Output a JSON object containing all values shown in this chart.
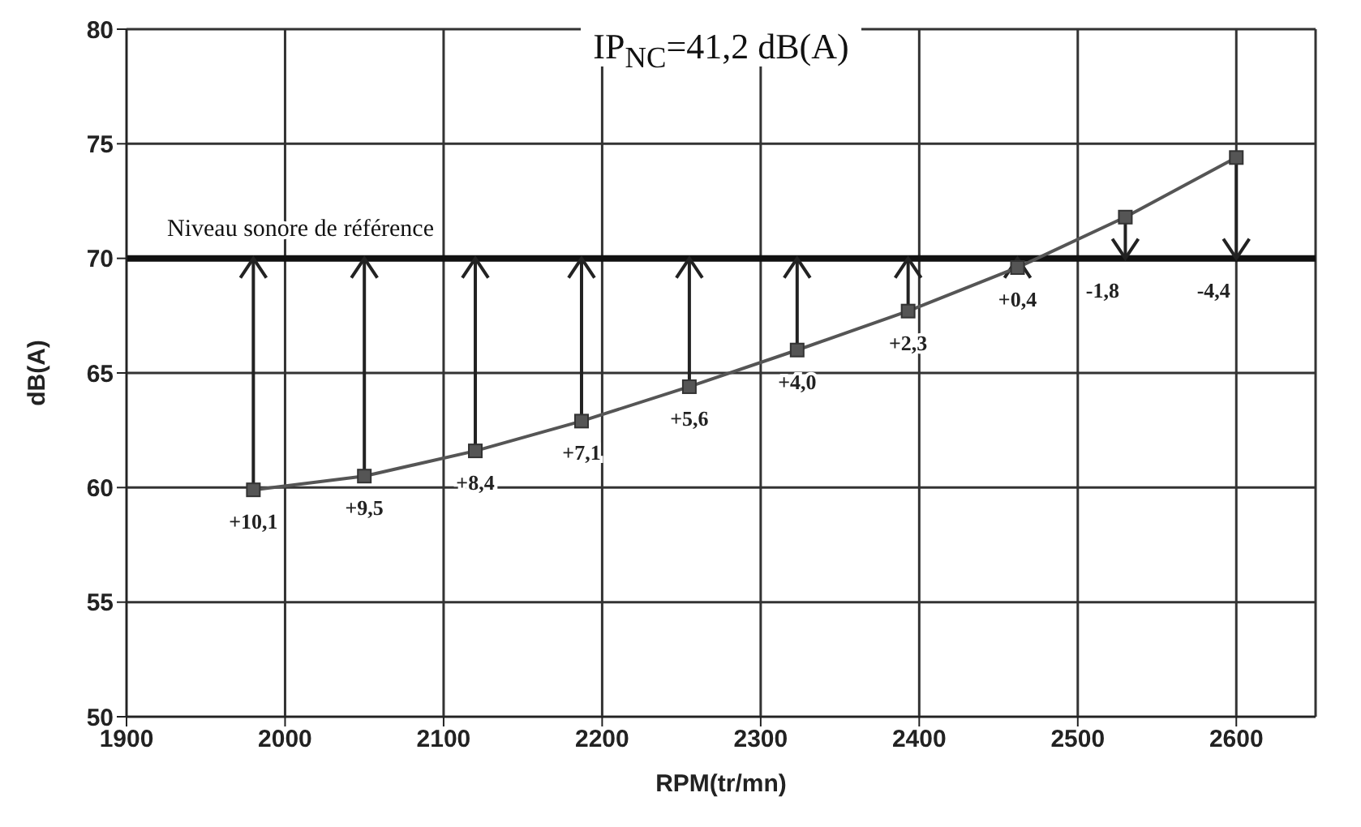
{
  "chart_data": {
    "type": "line",
    "title": "IP$_{NC}$=41,2 dB(A)",
    "xlabel": "RPM(tr/mn)",
    "ylabel": "dB(A)",
    "x": [
      1980,
      2050,
      2120,
      2187,
      2255,
      2323,
      2393,
      2462,
      2530,
      2600
    ],
    "series": [
      {
        "color": "#555555",
        "values": [
          59.9,
          60.5,
          61.6,
          62.9,
          64.4,
          66.0,
          67.7,
          69.6,
          71.8,
          74.4
        ]
      }
    ],
    "annotations": [
      {
        "text": "+10,1",
        "x": 1980,
        "y": 59.9
      },
      {
        "text": "+9,5",
        "x": 2050,
        "y": 60.5
      },
      {
        "text": "+8,4",
        "x": 2120,
        "y": 61.6
      },
      {
        "text": "+7,1",
        "x": 2187,
        "y": 62.9
      },
      {
        "text": "+5,6",
        "x": 2255,
        "y": 64.4
      },
      {
        "text": "+4,0",
        "x": 2323,
        "y": 66.0
      },
      {
        "text": "+2,3",
        "x": 2393,
        "y": 67.7
      },
      {
        "text": "+0,4",
        "x": 2462,
        "y": 69.6
      },
      {
        "text": "-1,8",
        "x": 2530,
        "y": 71.8
      },
      {
        "text": "-4,4",
        "x": 2600,
        "y": 74.4
      }
    ],
    "xlim": [
      1900,
      2650
    ],
    "xticks": [
      1900,
      2000,
      2100,
      2200,
      2300,
      2400,
      2500,
      2600
    ],
    "ylim": [
      50,
      80
    ],
    "yticks": [
      50,
      55,
      60,
      65,
      70,
      75,
      80
    ],
    "ref_lines": [
      {
        "axis": "y",
        "value": 70,
        "label": "Niveau sonore de référence",
        "color": "#111111"
      }
    ],
    "grid": true,
    "marker": "square",
    "line_style": "solid"
  }
}
